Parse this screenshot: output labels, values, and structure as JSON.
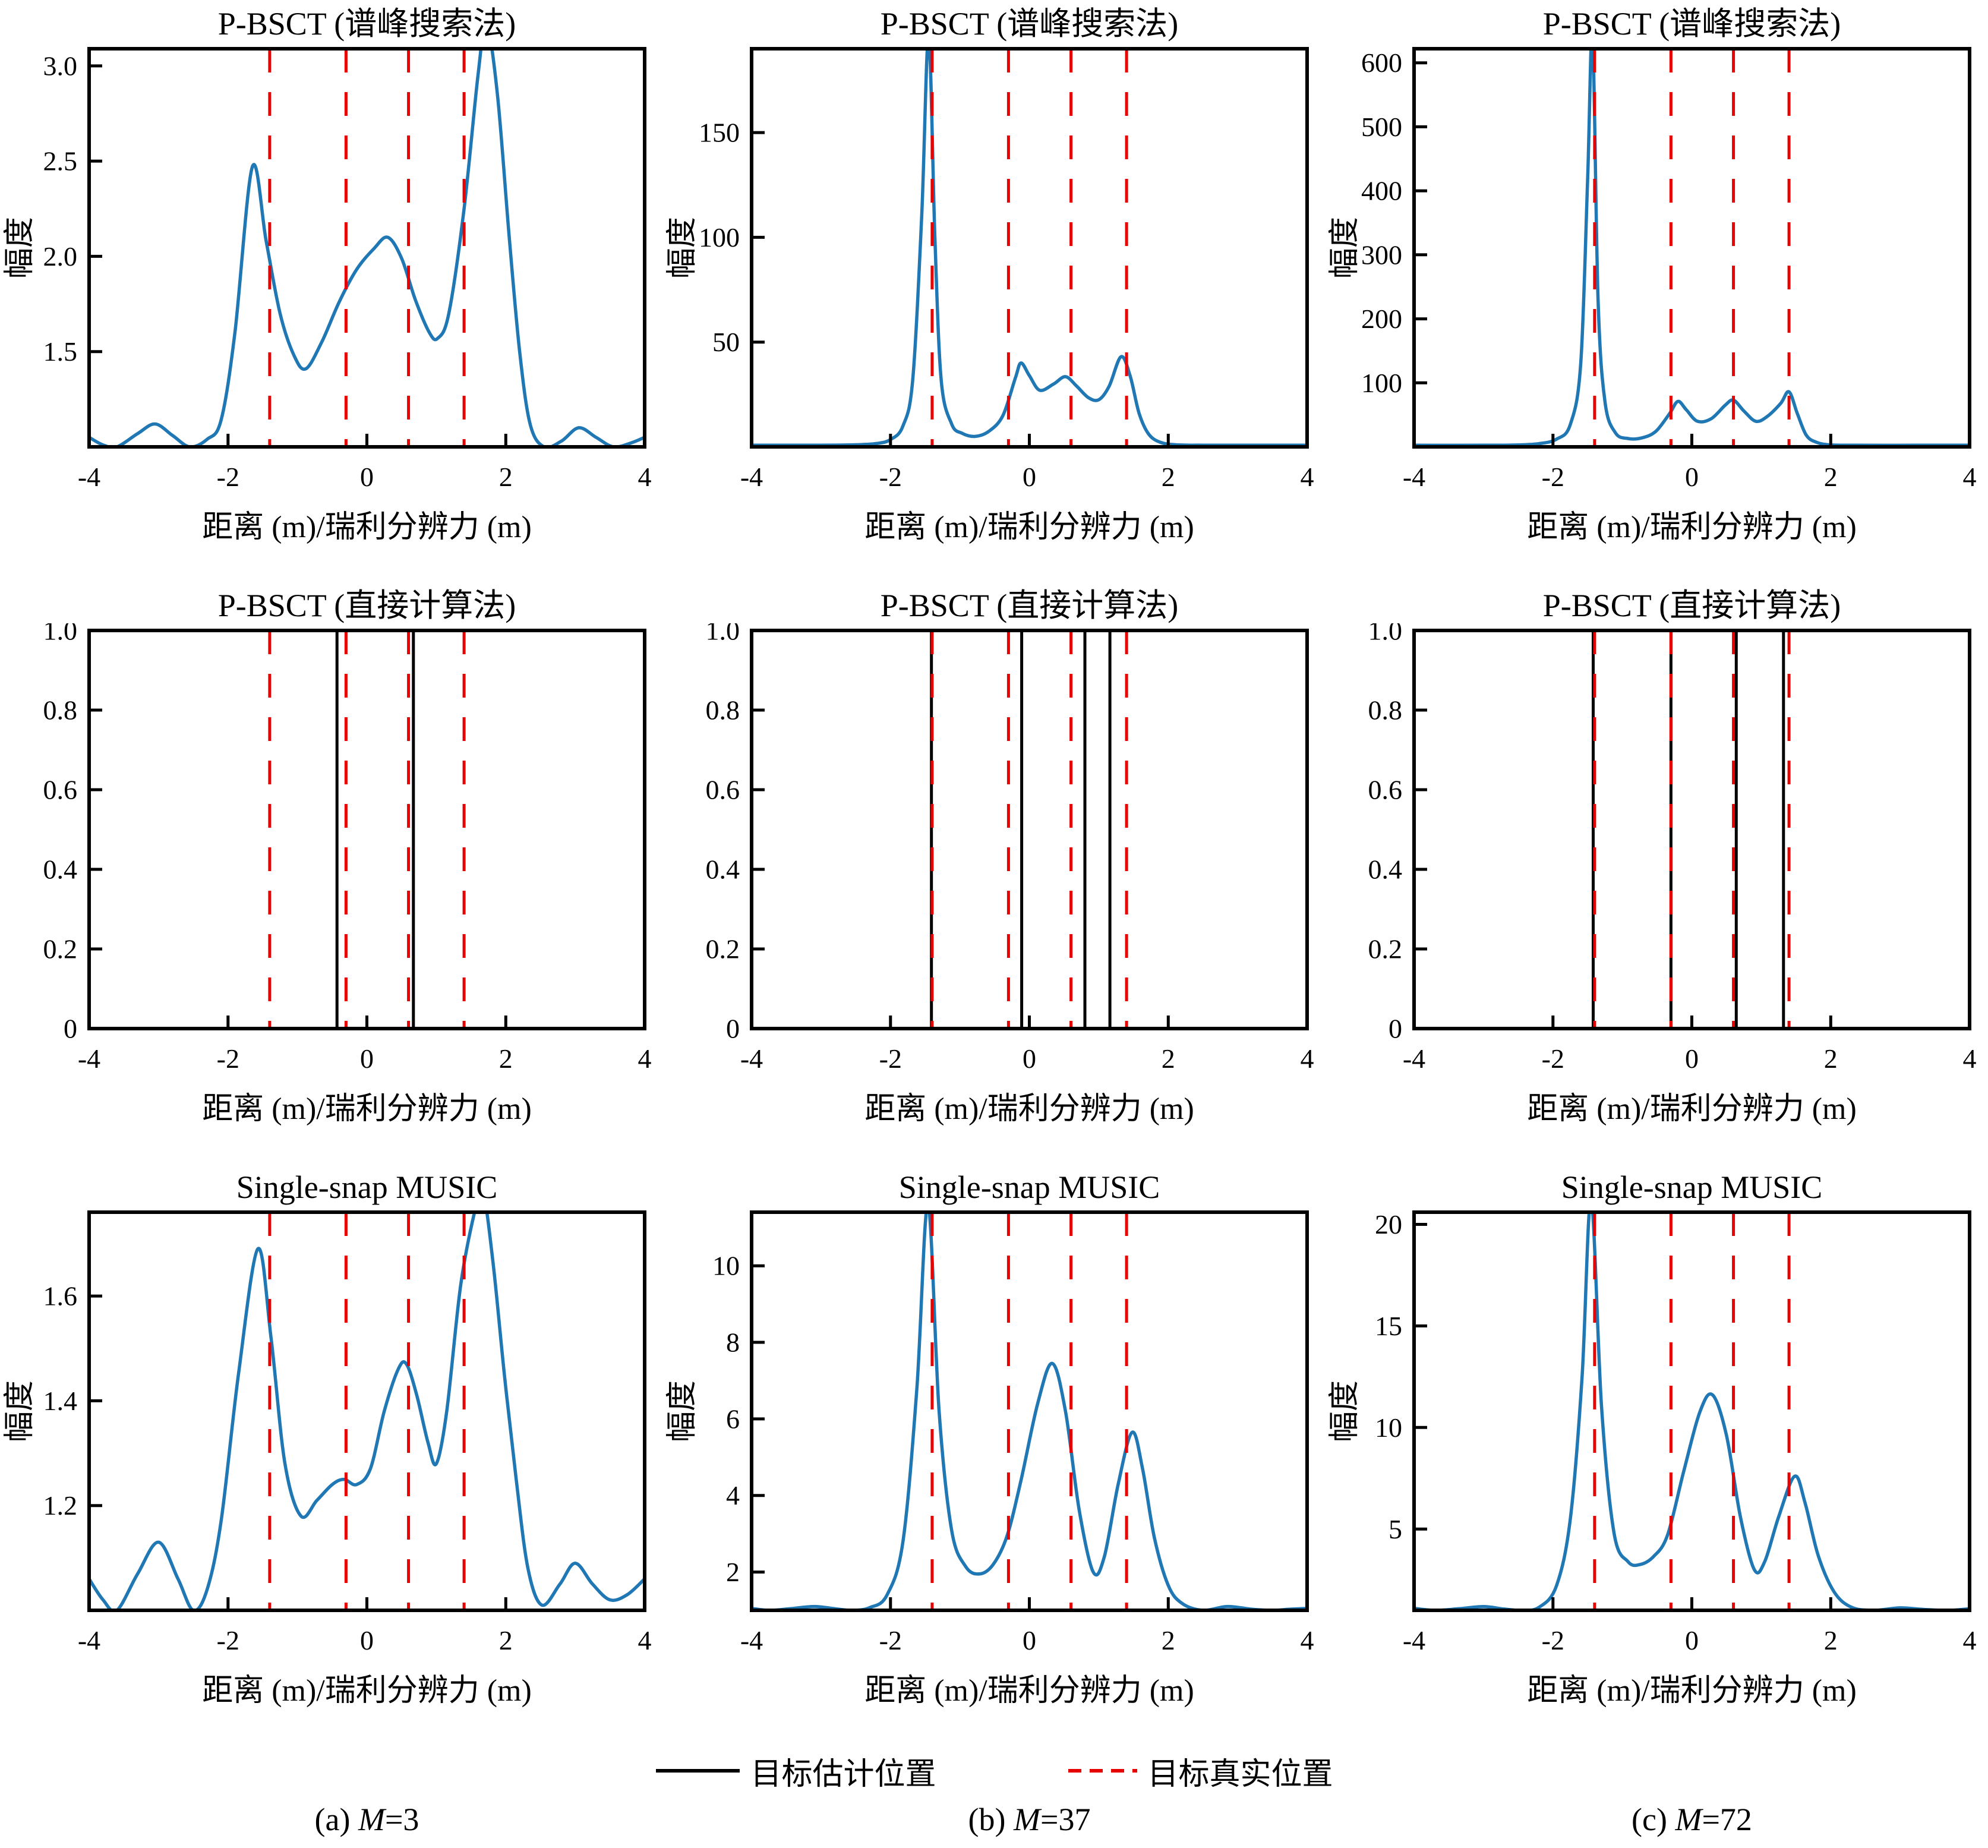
{
  "colors": {
    "curve": "#1f77b4",
    "true_line": "#e60000",
    "estimated_line": "#000000",
    "axis": "#000000"
  },
  "legend": {
    "estimated_label": "目标估计位置",
    "true_label": "目标真实位置"
  },
  "captions": [
    {
      "prefix": "(a) ",
      "m": "M",
      "rest": "=3"
    },
    {
      "prefix": "(b) ",
      "m": "M",
      "rest": "=37"
    },
    {
      "prefix": "(c) ",
      "m": "M",
      "rest": "=72"
    }
  ],
  "chart_data": [
    {
      "type": "line",
      "title": "P-BSCT (谱峰搜索法)",
      "xlabel": "距离 (m)/瑞利分辨力 (m)",
      "ylabel": "幅度",
      "xlim": [
        -4,
        4
      ],
      "ylim": [
        1.0,
        3.09
      ],
      "x_ticks": [
        -4,
        -2,
        0,
        2,
        4
      ],
      "x_tick_labels": [
        "-4",
        "-2",
        "0",
        "2",
        "4"
      ],
      "y_ticks": [
        1.5,
        2.0,
        2.5,
        3.0
      ],
      "y_tick_labels": [
        "1.5",
        "2.0",
        "2.5",
        "3.0"
      ],
      "true_positions": [
        -1.4,
        -0.3,
        0.6,
        1.4
      ],
      "estimated_positions": [],
      "curve": [
        [
          -4,
          1.05
        ],
        [
          -3.8,
          1.01
        ],
        [
          -3.6,
          1.0
        ],
        [
          -3.3,
          1.07
        ],
        [
          -3.05,
          1.12
        ],
        [
          -2.8,
          1.06
        ],
        [
          -2.55,
          1.0
        ],
        [
          -2.3,
          1.04
        ],
        [
          -2.1,
          1.14
        ],
        [
          -1.9,
          1.6
        ],
        [
          -1.65,
          2.47
        ],
        [
          -1.45,
          2.08
        ],
        [
          -1.25,
          1.7
        ],
        [
          -1.05,
          1.48
        ],
        [
          -0.88,
          1.41
        ],
        [
          -0.65,
          1.55
        ],
        [
          -0.4,
          1.76
        ],
        [
          -0.15,
          1.93
        ],
        [
          0.1,
          2.04
        ],
        [
          0.3,
          2.1
        ],
        [
          0.5,
          1.99
        ],
        [
          0.7,
          1.77
        ],
        [
          0.9,
          1.6
        ],
        [
          1.02,
          1.57
        ],
        [
          1.18,
          1.7
        ],
        [
          1.4,
          2.25
        ],
        [
          1.6,
          2.95
        ],
        [
          1.72,
          3.22
        ],
        [
          1.88,
          2.85
        ],
        [
          2.05,
          2.1
        ],
        [
          2.2,
          1.5
        ],
        [
          2.35,
          1.12
        ],
        [
          2.55,
          1.0
        ],
        [
          2.8,
          1.03
        ],
        [
          3.05,
          1.1
        ],
        [
          3.3,
          1.05
        ],
        [
          3.55,
          1.0
        ],
        [
          3.8,
          1.02
        ],
        [
          4,
          1.05
        ]
      ]
    },
    {
      "type": "line",
      "title": "P-BSCT (谱峰搜索法)",
      "xlabel": "距离 (m)/瑞利分辨力 (m)",
      "ylabel": "幅度",
      "xlim": [
        -4,
        4
      ],
      "ylim": [
        0,
        190
      ],
      "x_ticks": [
        -4,
        -2,
        0,
        2,
        4
      ],
      "x_tick_labels": [
        "-4",
        "-2",
        "0",
        "2",
        "4"
      ],
      "y_ticks": [
        50,
        100,
        150
      ],
      "y_tick_labels": [
        "50",
        "100",
        "150"
      ],
      "true_positions": [
        -1.4,
        -0.3,
        0.6,
        1.4
      ],
      "estimated_positions": [],
      "curve": [
        [
          -4,
          0.8
        ],
        [
          -3,
          0.8
        ],
        [
          -2.5,
          1
        ],
        [
          -2.2,
          1.6
        ],
        [
          -2,
          3.5
        ],
        [
          -1.82,
          10
        ],
        [
          -1.68,
          32
        ],
        [
          -1.55,
          110
        ],
        [
          -1.45,
          196
        ],
        [
          -1.36,
          100
        ],
        [
          -1.27,
          32
        ],
        [
          -1.12,
          11
        ],
        [
          -0.97,
          6.5
        ],
        [
          -0.78,
          5
        ],
        [
          -0.58,
          7.5
        ],
        [
          -0.38,
          15
        ],
        [
          -0.2,
          33
        ],
        [
          -0.12,
          40
        ],
        [
          0,
          34
        ],
        [
          0.15,
          27
        ],
        [
          0.35,
          30
        ],
        [
          0.52,
          33.5
        ],
        [
          0.68,
          29
        ],
        [
          0.85,
          23.5
        ],
        [
          1,
          22.5
        ],
        [
          1.15,
          29
        ],
        [
          1.32,
          43
        ],
        [
          1.45,
          34
        ],
        [
          1.58,
          16
        ],
        [
          1.72,
          6
        ],
        [
          1.9,
          2
        ],
        [
          2.15,
          0.9
        ],
        [
          2.5,
          0.8
        ],
        [
          3.2,
          0.8
        ],
        [
          4,
          0.8
        ]
      ]
    },
    {
      "type": "line",
      "title": "P-BSCT (谱峰搜索法)",
      "xlabel": "距离 (m)/瑞利分辨力 (m)",
      "ylabel": "幅度",
      "xlim": [
        -4,
        4
      ],
      "ylim": [
        0,
        622
      ],
      "x_ticks": [
        -4,
        -2,
        0,
        2,
        4
      ],
      "x_tick_labels": [
        "-4",
        "-2",
        "0",
        "2",
        "4"
      ],
      "y_ticks": [
        100,
        200,
        300,
        400,
        500,
        600
      ],
      "y_tick_labels": [
        "100",
        "200",
        "300",
        "400",
        "500",
        "600"
      ],
      "true_positions": [
        -1.4,
        -0.3,
        0.6,
        1.4
      ],
      "estimated_positions": [],
      "curve": [
        [
          -4,
          2.5
        ],
        [
          -3,
          2.5
        ],
        [
          -2.5,
          3
        ],
        [
          -2.2,
          5
        ],
        [
          -1.95,
          12
        ],
        [
          -1.75,
          35
        ],
        [
          -1.6,
          130
        ],
        [
          -1.5,
          420
        ],
        [
          -1.43,
          645
        ],
        [
          -1.35,
          230
        ],
        [
          -1.25,
          70
        ],
        [
          -1.1,
          22
        ],
        [
          -0.92,
          13
        ],
        [
          -0.72,
          14
        ],
        [
          -0.52,
          24
        ],
        [
          -0.32,
          52
        ],
        [
          -0.2,
          71
        ],
        [
          -0.08,
          58
        ],
        [
          0.08,
          40
        ],
        [
          0.28,
          44
        ],
        [
          0.48,
          65
        ],
        [
          0.6,
          73
        ],
        [
          0.75,
          56
        ],
        [
          0.92,
          40
        ],
        [
          1.08,
          47
        ],
        [
          1.28,
          68
        ],
        [
          1.4,
          86
        ],
        [
          1.52,
          52
        ],
        [
          1.65,
          18
        ],
        [
          1.8,
          7
        ],
        [
          2,
          3
        ],
        [
          2.4,
          2.5
        ],
        [
          3.2,
          2.5
        ],
        [
          4,
          2.5
        ]
      ]
    },
    {
      "type": "vlines",
      "title": "P-BSCT (直接计算法)",
      "xlabel": "距离 (m)/瑞利分辨力 (m)",
      "ylabel": "",
      "xlim": [
        -4,
        4
      ],
      "ylim": [
        0,
        1
      ],
      "x_ticks": [
        -4,
        -2,
        0,
        2,
        4
      ],
      "x_tick_labels": [
        "-4",
        "-2",
        "0",
        "2",
        "4"
      ],
      "y_ticks": [
        0,
        0.2,
        0.4,
        0.6,
        0.8,
        1.0
      ],
      "y_tick_labels": [
        "0",
        "0.2",
        "0.4",
        "0.6",
        "0.8",
        "1.0"
      ],
      "true_positions": [
        -1.4,
        -0.3,
        0.6,
        1.4
      ],
      "estimated_positions": [
        -0.43,
        0.67
      ],
      "curve": []
    },
    {
      "type": "vlines",
      "title": "P-BSCT (直接计算法)",
      "xlabel": "距离 (m)/瑞利分辨力 (m)",
      "ylabel": "",
      "xlim": [
        -4,
        4
      ],
      "ylim": [
        0,
        1
      ],
      "x_ticks": [
        -4,
        -2,
        0,
        2,
        4
      ],
      "x_tick_labels": [
        "-4",
        "-2",
        "0",
        "2",
        "4"
      ],
      "y_ticks": [
        0,
        0.2,
        0.4,
        0.6,
        0.8,
        1.0
      ],
      "y_tick_labels": [
        "0",
        "0.2",
        "0.4",
        "0.6",
        "0.8",
        "1.0"
      ],
      "true_positions": [
        -1.4,
        -0.3,
        0.6,
        1.4
      ],
      "estimated_positions": [
        -1.41,
        -0.11,
        0.8,
        1.16
      ],
      "curve": []
    },
    {
      "type": "vlines",
      "title": "P-BSCT (直接计算法)",
      "xlabel": "距离 (m)/瑞利分辨力 (m)",
      "ylabel": "",
      "xlim": [
        -4,
        4
      ],
      "ylim": [
        0,
        1
      ],
      "x_ticks": [
        -4,
        -2,
        0,
        2,
        4
      ],
      "x_tick_labels": [
        "-4",
        "-2",
        "0",
        "2",
        "4"
      ],
      "y_ticks": [
        0,
        0.2,
        0.4,
        0.6,
        0.8,
        1.0
      ],
      "y_tick_labels": [
        "0",
        "0.2",
        "0.4",
        "0.6",
        "0.8",
        "1.0"
      ],
      "true_positions": [
        -1.4,
        -0.3,
        0.6,
        1.4
      ],
      "estimated_positions": [
        -1.42,
        -0.3,
        0.64,
        1.32
      ],
      "curve": []
    },
    {
      "type": "line",
      "title": "Single-snap MUSIC",
      "xlabel": "距离 (m)/瑞利分辨力 (m)",
      "ylabel": "幅度",
      "xlim": [
        -4,
        4
      ],
      "ylim": [
        1.0,
        1.76
      ],
      "x_ticks": [
        -4,
        -2,
        0,
        2,
        4
      ],
      "x_tick_labels": [
        "-4",
        "-2",
        "0",
        "2",
        "4"
      ],
      "y_ticks": [
        1.2,
        1.4,
        1.6
      ],
      "y_tick_labels": [
        "1.2",
        "1.4",
        "1.6"
      ],
      "true_positions": [
        -1.4,
        -0.3,
        0.6,
        1.4
      ],
      "estimated_positions": [],
      "curve": [
        [
          -4,
          1.06
        ],
        [
          -3.8,
          1.02
        ],
        [
          -3.6,
          1.0
        ],
        [
          -3.3,
          1.07
        ],
        [
          -3.0,
          1.13
        ],
        [
          -2.72,
          1.06
        ],
        [
          -2.5,
          1.0
        ],
        [
          -2.3,
          1.04
        ],
        [
          -2.1,
          1.17
        ],
        [
          -1.85,
          1.45
        ],
        [
          -1.57,
          1.69
        ],
        [
          -1.38,
          1.52
        ],
        [
          -1.18,
          1.28
        ],
        [
          -0.95,
          1.18
        ],
        [
          -0.72,
          1.21
        ],
        [
          -0.5,
          1.24
        ],
        [
          -0.33,
          1.25
        ],
        [
          -0.15,
          1.24
        ],
        [
          0.05,
          1.27
        ],
        [
          0.25,
          1.38
        ],
        [
          0.45,
          1.46
        ],
        [
          0.57,
          1.47
        ],
        [
          0.72,
          1.41
        ],
        [
          0.88,
          1.32
        ],
        [
          1.0,
          1.28
        ],
        [
          1.15,
          1.38
        ],
        [
          1.35,
          1.62
        ],
        [
          1.55,
          1.76
        ],
        [
          1.67,
          1.8
        ],
        [
          1.82,
          1.66
        ],
        [
          1.98,
          1.45
        ],
        [
          2.15,
          1.25
        ],
        [
          2.32,
          1.08
        ],
        [
          2.52,
          1.01
        ],
        [
          2.78,
          1.05
        ],
        [
          3.0,
          1.09
        ],
        [
          3.25,
          1.05
        ],
        [
          3.5,
          1.02
        ],
        [
          3.75,
          1.03
        ],
        [
          4,
          1.06
        ]
      ]
    },
    {
      "type": "line",
      "title": "Single-snap MUSIC",
      "xlabel": "距离 (m)/瑞利分辨力 (m)",
      "ylabel": "幅度",
      "xlim": [
        -4,
        4
      ],
      "ylim": [
        1,
        11.4
      ],
      "x_ticks": [
        -4,
        -2,
        0,
        2,
        4
      ],
      "x_tick_labels": [
        "-4",
        "-2",
        "0",
        "2",
        "4"
      ],
      "y_ticks": [
        2,
        4,
        6,
        8,
        10
      ],
      "y_tick_labels": [
        "2",
        "4",
        "6",
        "8",
        "10"
      ],
      "true_positions": [
        -1.4,
        -0.3,
        0.6,
        1.4
      ],
      "estimated_positions": [],
      "curve": [
        [
          -4,
          1.05
        ],
        [
          -3.75,
          1.0
        ],
        [
          -3.45,
          1.04
        ],
        [
          -3.1,
          1.1
        ],
        [
          -2.8,
          1.04
        ],
        [
          -2.55,
          1.0
        ],
        [
          -2.3,
          1.07
        ],
        [
          -2.05,
          1.4
        ],
        [
          -1.82,
          2.8
        ],
        [
          -1.62,
          6.8
        ],
        [
          -1.46,
          11.6
        ],
        [
          -1.3,
          6.2
        ],
        [
          -1.12,
          3.1
        ],
        [
          -0.92,
          2.15
        ],
        [
          -0.72,
          1.95
        ],
        [
          -0.52,
          2.2
        ],
        [
          -0.32,
          2.95
        ],
        [
          -0.12,
          4.4
        ],
        [
          0.12,
          6.4
        ],
        [
          0.33,
          7.45
        ],
        [
          0.52,
          6.2
        ],
        [
          0.72,
          3.6
        ],
        [
          0.92,
          2.0
        ],
        [
          1.08,
          2.4
        ],
        [
          1.28,
          4.3
        ],
        [
          1.48,
          5.65
        ],
        [
          1.63,
          4.7
        ],
        [
          1.8,
          2.9
        ],
        [
          2.0,
          1.65
        ],
        [
          2.2,
          1.18
        ],
        [
          2.5,
          1.0
        ],
        [
          2.85,
          1.1
        ],
        [
          3.2,
          1.03
        ],
        [
          3.5,
          1.0
        ],
        [
          3.75,
          1.03
        ],
        [
          4,
          1.05
        ]
      ]
    },
    {
      "type": "line",
      "title": "Single-snap MUSIC",
      "xlabel": "距离 (m)/瑞利分辨力 (m)",
      "ylabel": "幅度",
      "xlim": [
        -4,
        4
      ],
      "ylim": [
        1,
        20.6
      ],
      "x_ticks": [
        -4,
        -2,
        0,
        2,
        4
      ],
      "x_tick_labels": [
        "-4",
        "-2",
        "0",
        "2",
        "4"
      ],
      "y_ticks": [
        5,
        10,
        15,
        20
      ],
      "y_tick_labels": [
        "5",
        "10",
        "15",
        "20"
      ],
      "true_positions": [
        -1.4,
        -0.3,
        0.6,
        1.4
      ],
      "estimated_positions": [],
      "curve": [
        [
          -4,
          1.1
        ],
        [
          -3.7,
          1.0
        ],
        [
          -3.35,
          1.08
        ],
        [
          -3.0,
          1.18
        ],
        [
          -2.7,
          1.06
        ],
        [
          -2.45,
          1.0
        ],
        [
          -2.2,
          1.15
        ],
        [
          -1.95,
          2.2
        ],
        [
          -1.75,
          5.5
        ],
        [
          -1.58,
          12.5
        ],
        [
          -1.45,
          21.2
        ],
        [
          -1.3,
          11
        ],
        [
          -1.12,
          4.8
        ],
        [
          -0.92,
          3.4
        ],
        [
          -0.75,
          3.25
        ],
        [
          -0.55,
          3.65
        ],
        [
          -0.35,
          4.7
        ],
        [
          -0.12,
          7.8
        ],
        [
          0.12,
          10.8
        ],
        [
          0.3,
          11.6
        ],
        [
          0.5,
          9.6
        ],
        [
          0.7,
          5.6
        ],
        [
          0.9,
          3.0
        ],
        [
          1.05,
          3.4
        ],
        [
          1.25,
          5.6
        ],
        [
          1.48,
          7.6
        ],
        [
          1.63,
          6.3
        ],
        [
          1.82,
          3.7
        ],
        [
          2.05,
          1.9
        ],
        [
          2.3,
          1.15
        ],
        [
          2.62,
          1.0
        ],
        [
          3.0,
          1.12
        ],
        [
          3.35,
          1.04
        ],
        [
          3.7,
          1.0
        ],
        [
          4,
          1.08
        ]
      ]
    }
  ]
}
